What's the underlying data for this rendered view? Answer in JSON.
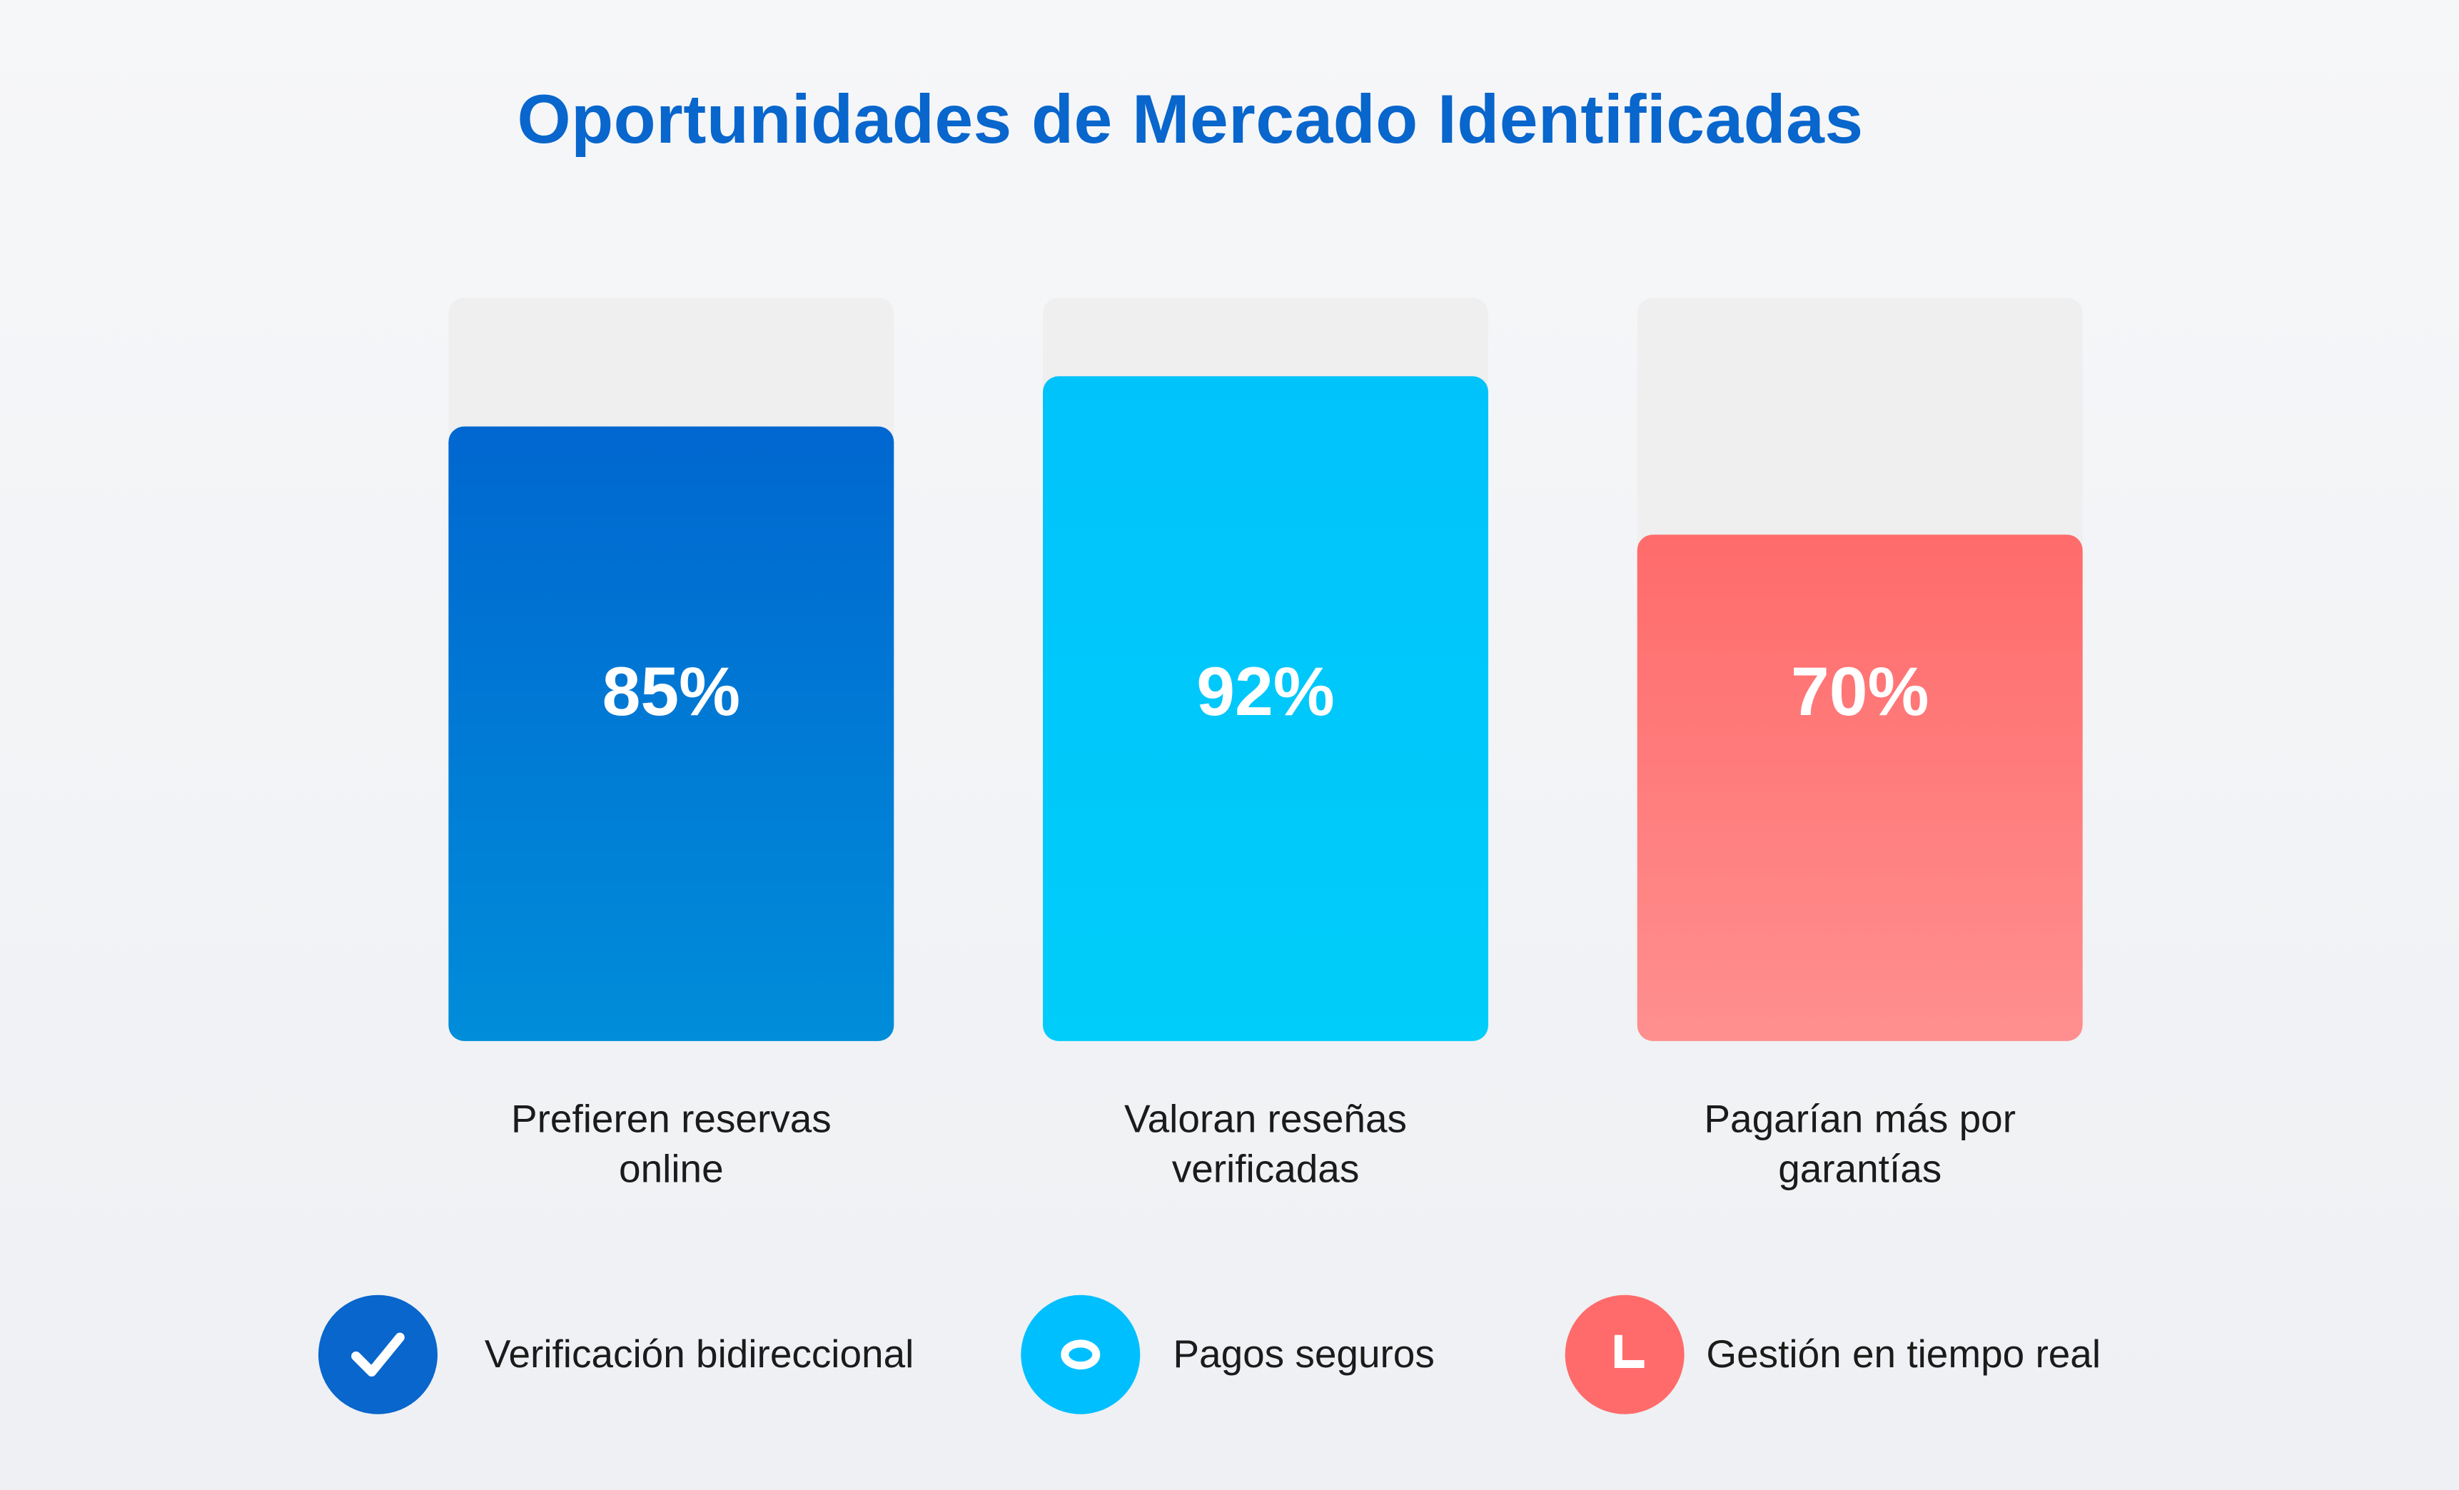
{
  "title": "Oportunidades de Mercado Identificadas",
  "chart_data": {
    "type": "bar",
    "categories": [
      "Prefieren reservas online",
      "Valoran reseñas verificadas",
      "Pagarían más por garantías"
    ],
    "category_lines": [
      [
        "Prefieren reservas",
        "online"
      ],
      [
        "Valoran reseñas",
        "verificadas"
      ],
      [
        "Pagarían más por",
        "garantías"
      ]
    ],
    "values": [
      85,
      92,
      70
    ],
    "value_labels": [
      "85%",
      "92%",
      "70%"
    ],
    "ylim": [
      0,
      100
    ],
    "bar_colors": [
      [
        "#0067d0",
        "#008dd9"
      ],
      [
        "#00c3fb",
        "#00cdfa"
      ],
      [
        "#ff6b6b",
        "#ff8f8f"
      ]
    ],
    "track_color": "#efefef",
    "grid": false
  },
  "legend": [
    {
      "label": "Verificación bidireccional",
      "icon": "check-icon",
      "color": "#0866cc"
    },
    {
      "label": "Pagos seguros",
      "icon": "ring-icon",
      "color": "#00bfff"
    },
    {
      "label": "Gestión en tiempo real",
      "icon": "clock-icon",
      "color": "#ff6b6b"
    }
  ]
}
